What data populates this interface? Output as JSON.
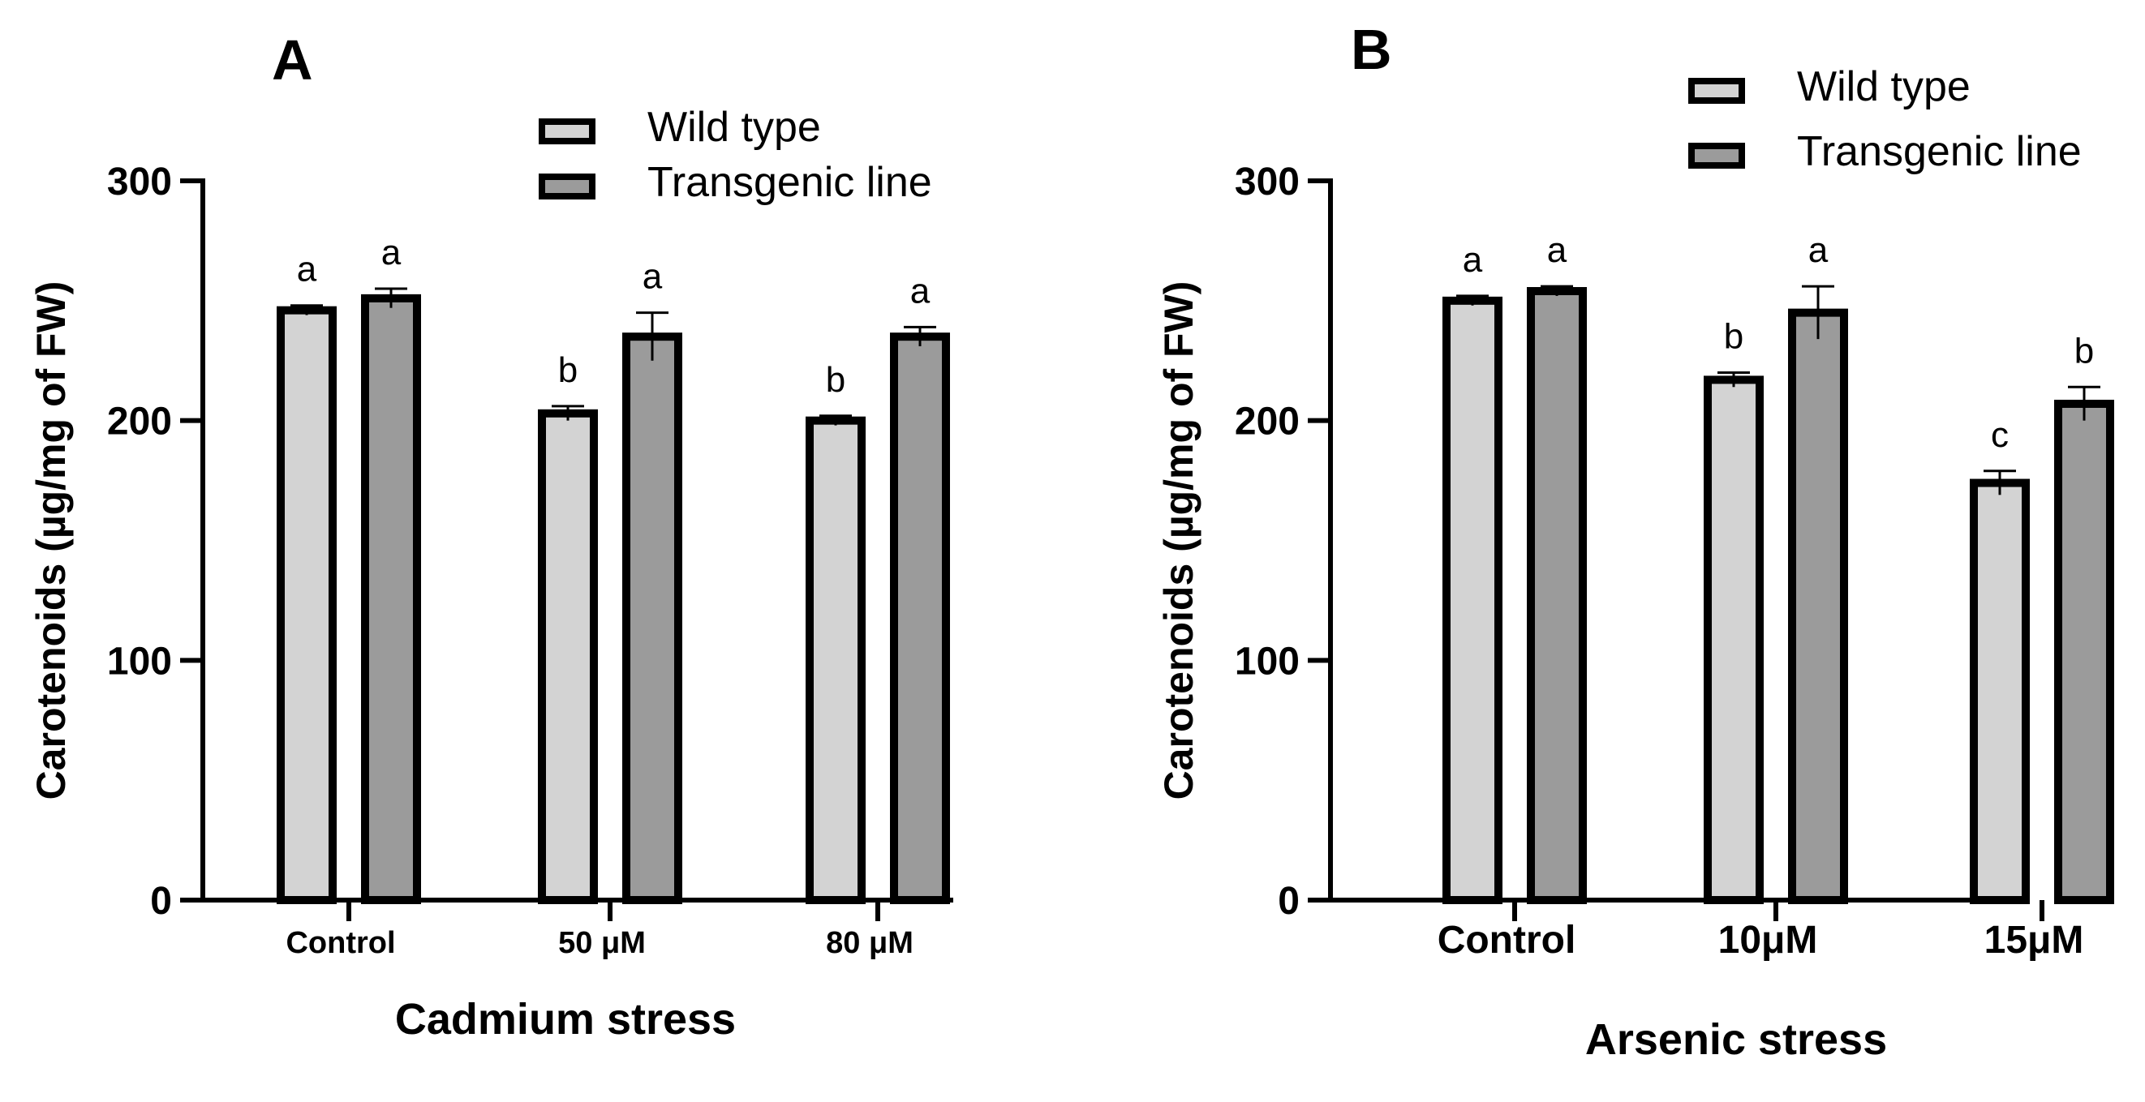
{
  "chart_data": [
    {
      "type": "bar",
      "panel_label": "A",
      "xlabel": "Cadmium stress",
      "ylabel": "Carotenoids (µg/mg of FW)",
      "ylim": [
        0,
        300
      ],
      "yticks": [
        0,
        100,
        200,
        300
      ],
      "categories": [
        "Control",
        "50 μM",
        "80 μM"
      ],
      "series": [
        {
          "name": "Wild type",
          "color": "#d3d3d3",
          "values": [
            246,
            203,
            200
          ],
          "errors": [
            2,
            3,
            2
          ],
          "sig": [
            "a",
            "b",
            "b"
          ]
        },
        {
          "name": "Transgenic line",
          "color": "#9b9b9b",
          "values": [
            251,
            235,
            235
          ],
          "errors": [
            4,
            10,
            4
          ],
          "sig": [
            "a",
            "a",
            "a"
          ]
        }
      ],
      "legend_position": "top-right"
    },
    {
      "type": "bar",
      "panel_label": "B",
      "xlabel": "Arsenic stress",
      "ylabel": "Carotenoids (µg/mg of FW)",
      "ylim": [
        0,
        300
      ],
      "yticks": [
        0,
        100,
        200,
        300
      ],
      "categories": [
        "Control",
        "10μM",
        "15μM"
      ],
      "series": [
        {
          "name": "Wild type",
          "color": "#d3d3d3",
          "values": [
            250,
            217,
            174
          ],
          "errors": [
            2,
            3,
            5
          ],
          "sig": [
            "a",
            "b",
            "c"
          ]
        },
        {
          "name": "Transgenic line",
          "color": "#9b9b9b",
          "values": [
            254,
            245,
            207
          ],
          "errors": [
            2,
            11,
            7
          ],
          "sig": [
            "a",
            "a",
            "b"
          ]
        }
      ],
      "legend_position": "top-right"
    }
  ]
}
